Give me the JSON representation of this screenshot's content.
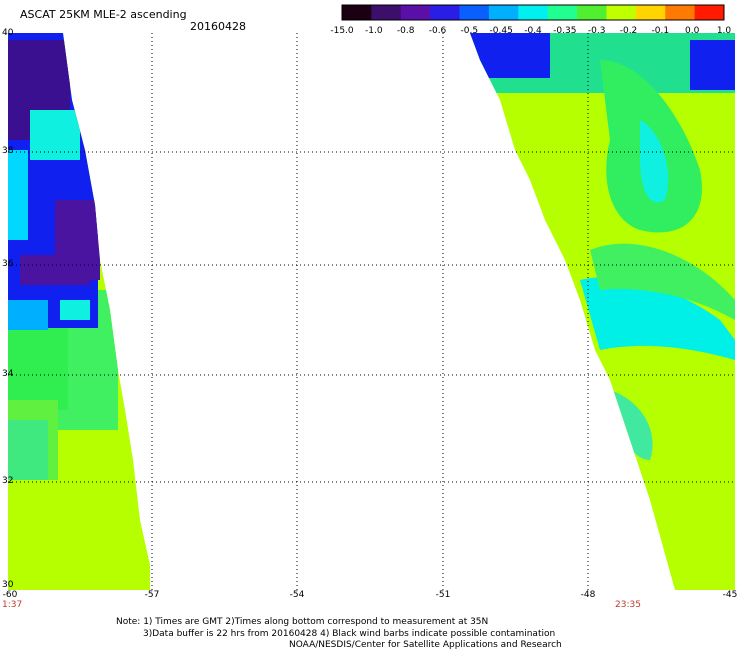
{
  "header": {
    "title": "ASCAT 25KM MLE-2 ascending",
    "date": "20160428"
  },
  "colorbar": {
    "labels": [
      "-15.0",
      "-1.0",
      "-0.8",
      "-0.6",
      "-0.5",
      "-0.45",
      "-0.4",
      "-0.35",
      "-0.3",
      "-0.2",
      "-0.1",
      "0.0",
      "1.0"
    ],
    "colors": [
      "#1a0010",
      "#3b0f6b",
      "#5a10a8",
      "#2a1ee6",
      "#0a60ff",
      "#00b0ff",
      "#00f0f0",
      "#20ff90",
      "#50f030",
      "#c0ff00",
      "#ffd400",
      "#ff7a00",
      "#ff1a00"
    ]
  },
  "map": {
    "lat_labels": [
      "40",
      "38",
      "36",
      "34",
      "32",
      "30"
    ],
    "lon_labels": [
      "-60",
      "-57",
      "-54",
      "-51",
      "-48",
      "-45"
    ],
    "time_left": "1:37",
    "time_right": "23:35"
  },
  "notes": {
    "line1": "Note: 1) Times are GMT 2)Times along bottom correspond to measurement at 35N",
    "line2": "3)Data buffer is 22 hrs from 20160428 4) Black wind barbs indicate possible contamination",
    "line3": "NOAA/NESDIS/Center for Satellite Applications and Research"
  }
}
